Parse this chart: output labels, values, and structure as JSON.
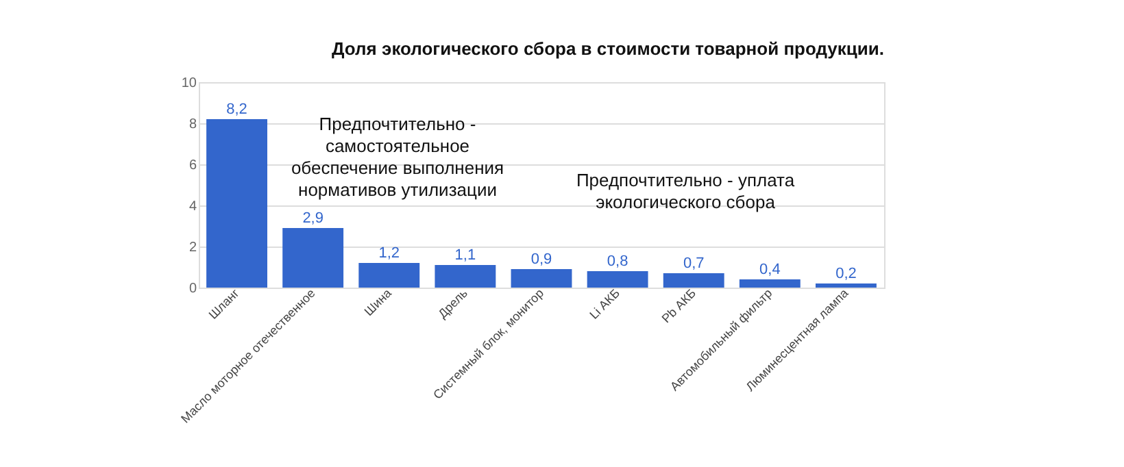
{
  "chart_data": {
    "type": "bar",
    "title": "Доля экологического сбора в стоимости товарной продукции.",
    "categories": [
      "Шланг",
      "Масло моторное отечественное",
      "Шина",
      "Дрель",
      "Системный блок, монитор",
      "Li АКБ",
      "Pb АКБ",
      "Автомобильный фильтр",
      "Люминесцентная лампа"
    ],
    "values": [
      8.2,
      2.9,
      1.2,
      1.1,
      0.9,
      0.8,
      0.7,
      0.4,
      0.2
    ],
    "value_labels": [
      "8,2",
      "2,9",
      "1,2",
      "1,1",
      "0,9",
      "0,8",
      "0,7",
      "0,4",
      "0,2"
    ],
    "color": "#3366cc",
    "ylim": [
      0,
      10
    ],
    "yticks": [
      0,
      2,
      4,
      6,
      8,
      10
    ],
    "grid": "y",
    "legend": false,
    "annotations": [
      "Предпочтительно -\nсамостоятельное\nобеспечение выполнения\nнормативов утилизации",
      "Предпочтительно - уплата\nэкологического сбора"
    ]
  }
}
